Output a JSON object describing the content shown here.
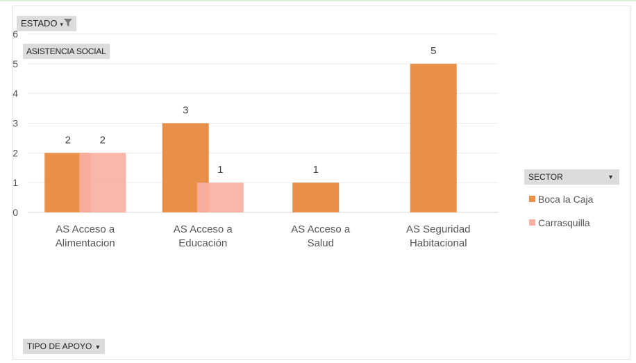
{
  "filters": {
    "estado_label": "ESTADO",
    "asistencia_label": "ASISTENCIA SOCIAL",
    "tipo_label": "TIPO DE APOYO",
    "sector_label": "SECTOR"
  },
  "icons": {
    "filter": "funnel-icon",
    "dropdown": "triangle-down-icon"
  },
  "chart_data": {
    "type": "bar",
    "categories": [
      [
        "AS Acceso a",
        "Alimentacion"
      ],
      [
        "AS Acceso a",
        "Educación"
      ],
      [
        "AS Acceso a",
        "Salud"
      ],
      [
        "AS Seguridad",
        "Habitacional"
      ]
    ],
    "series": [
      {
        "name": "Boca la Caja",
        "color": "#e8904a",
        "values": [
          2,
          3,
          1,
          5
        ]
      },
      {
        "name": "Carrasquilla",
        "color": "#f8b0a2",
        "values": [
          2,
          1,
          null,
          null
        ]
      }
    ],
    "ylim": [
      0,
      6
    ],
    "yticks": [
      0,
      1,
      2,
      3,
      4,
      5,
      6
    ],
    "grid": true,
    "legend_position": "right",
    "legend_title": "SECTOR"
  }
}
